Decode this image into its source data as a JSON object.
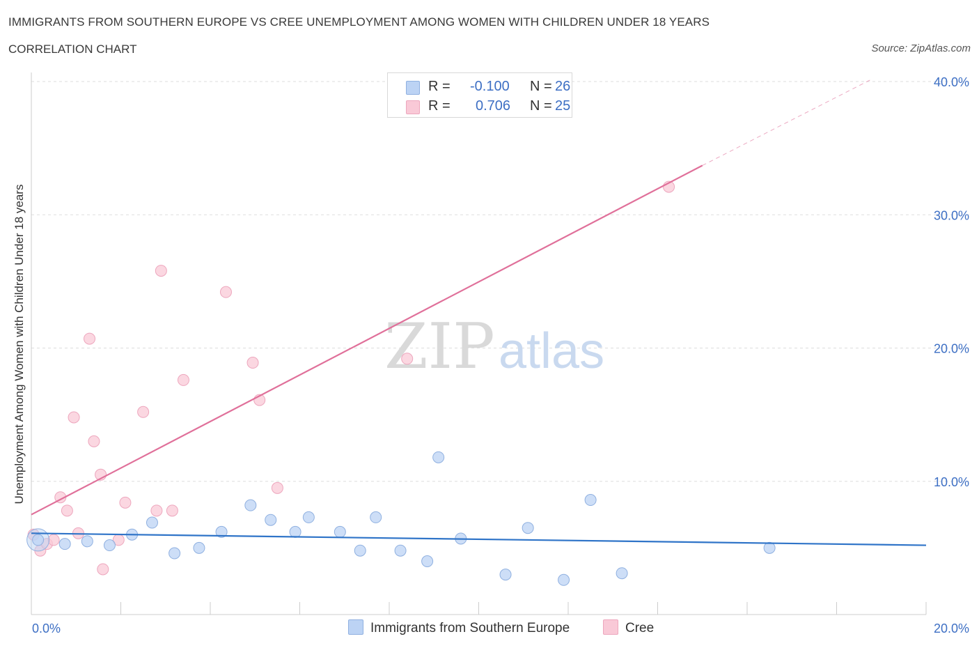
{
  "header": {
    "title": "IMMIGRANTS FROM SOUTHERN EUROPE VS CREE UNEMPLOYMENT AMONG WOMEN WITH CHILDREN UNDER 18 YEARS",
    "subtitle": "CORRELATION CHART",
    "source": "Source: ZipAtlas.com"
  },
  "legend": {
    "rows": [
      {
        "r_label": "R =",
        "r_value": "-0.100",
        "n_label": "N =",
        "n_value": "26"
      },
      {
        "r_label": "R =",
        "r_value": "0.706",
        "n_label": "N =",
        "n_value": "25"
      }
    ]
  },
  "watermark": {
    "zip": "ZIP",
    "atlas": "atlas"
  },
  "colors": {
    "blue_fill": "#bcd3f4",
    "blue_stroke": "#8fb0e0",
    "blue_line": "#2f74c8",
    "pink_fill": "#f9c9d7",
    "pink_stroke": "#eda6bd",
    "pink_line": "#e0709a",
    "grid": "#dddddd",
    "tick_text": "#3d6fc4"
  },
  "chart_data": {
    "type": "scatter",
    "title": "IMMIGRANTS FROM SOUTHERN EUROPE VS CREE UNEMPLOYMENT AMONG WOMEN WITH CHILDREN UNDER 18 YEARS",
    "subtitle": "CORRELATION CHART",
    "xlabel": "",
    "ylabel": "Unemployment Among Women with Children Under 18 years",
    "xlim": [
      0,
      20
    ],
    "ylim": [
      0,
      40
    ],
    "x_tick_labels": [
      "0.0%",
      "20.0%"
    ],
    "y_tick_labels": [
      "10.0%",
      "20.0%",
      "30.0%",
      "40.0%"
    ],
    "y_ticks": [
      10,
      20,
      30,
      40
    ],
    "grid": true,
    "legend_position": "top-center",
    "series": [
      {
        "name": "Immigrants from Southern Europe",
        "color": "#bcd3f4",
        "r": "-0.100",
        "n": "26",
        "trend": {
          "x": [
            0,
            20
          ],
          "y": [
            6.1,
            5.2
          ],
          "style": "solid"
        },
        "points": [
          {
            "x": 0.15,
            "y": 5.6
          },
          {
            "x": 0.75,
            "y": 5.3
          },
          {
            "x": 1.25,
            "y": 5.5
          },
          {
            "x": 1.75,
            "y": 5.2
          },
          {
            "x": 2.25,
            "y": 6.0
          },
          {
            "x": 2.7,
            "y": 6.9
          },
          {
            "x": 3.2,
            "y": 4.6
          },
          {
            "x": 3.75,
            "y": 5.0
          },
          {
            "x": 4.25,
            "y": 6.2
          },
          {
            "x": 4.9,
            "y": 8.2
          },
          {
            "x": 5.35,
            "y": 7.1
          },
          {
            "x": 5.9,
            "y": 6.2
          },
          {
            "x": 6.2,
            "y": 7.3
          },
          {
            "x": 6.9,
            "y": 6.2
          },
          {
            "x": 7.35,
            "y": 4.8
          },
          {
            "x": 7.7,
            "y": 7.3
          },
          {
            "x": 8.25,
            "y": 4.8
          },
          {
            "x": 8.85,
            "y": 4.0
          },
          {
            "x": 9.1,
            "y": 11.8
          },
          {
            "x": 9.6,
            "y": 5.7
          },
          {
            "x": 10.6,
            "y": 3.0
          },
          {
            "x": 11.1,
            "y": 6.5
          },
          {
            "x": 11.9,
            "y": 2.6
          },
          {
            "x": 12.5,
            "y": 8.6
          },
          {
            "x": 13.2,
            "y": 3.1
          },
          {
            "x": 16.5,
            "y": 5.0
          }
        ]
      },
      {
        "name": "Cree",
        "color": "#f9c9d7",
        "r": "0.706",
        "n": "25",
        "trend": {
          "x": [
            0,
            15
          ],
          "y": [
            7.5,
            33.7
          ],
          "style": "solid",
          "dashed_extension": {
            "x": [
              15,
              18.8
            ],
            "y": [
              33.7,
              40.2
            ]
          }
        },
        "points": [
          {
            "x": 0.05,
            "y": 6.0
          },
          {
            "x": 0.2,
            "y": 4.8
          },
          {
            "x": 0.35,
            "y": 5.3
          },
          {
            "x": 0.5,
            "y": 5.6
          },
          {
            "x": 0.65,
            "y": 8.8
          },
          {
            "x": 0.8,
            "y": 7.8
          },
          {
            "x": 0.95,
            "y": 14.8
          },
          {
            "x": 1.05,
            "y": 6.1
          },
          {
            "x": 1.3,
            "y": 20.7
          },
          {
            "x": 1.4,
            "y": 13.0
          },
          {
            "x": 1.55,
            "y": 10.5
          },
          {
            "x": 1.6,
            "y": 3.4
          },
          {
            "x": 1.95,
            "y": 5.6
          },
          {
            "x": 2.1,
            "y": 8.4
          },
          {
            "x": 2.5,
            "y": 15.2
          },
          {
            "x": 2.8,
            "y": 7.8
          },
          {
            "x": 2.9,
            "y": 25.8
          },
          {
            "x": 3.15,
            "y": 7.8
          },
          {
            "x": 3.4,
            "y": 17.6
          },
          {
            "x": 4.35,
            "y": 24.2
          },
          {
            "x": 4.95,
            "y": 18.9
          },
          {
            "x": 5.1,
            "y": 16.1
          },
          {
            "x": 5.5,
            "y": 9.5
          },
          {
            "x": 8.4,
            "y": 19.2
          },
          {
            "x": 14.25,
            "y": 32.1
          }
        ]
      }
    ]
  },
  "bottom_legend": {
    "items": [
      {
        "label": "Immigrants from Southern Europe"
      },
      {
        "label": "Cree"
      }
    ]
  }
}
